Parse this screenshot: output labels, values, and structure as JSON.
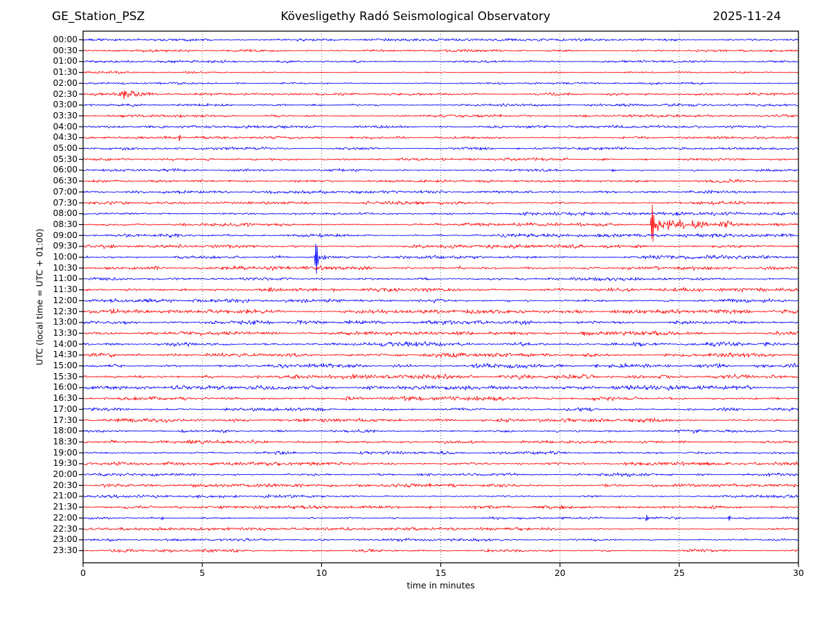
{
  "header": {
    "station": "GE_Station_PSZ",
    "observatory": "Kövesligethy Radó Seismological Observatory",
    "date": "2025-11-24"
  },
  "chart_data": {
    "type": "line",
    "subtype": "helicorder-seismogram",
    "title": "Kövesligethy Radó Seismological Observatory",
    "station": "GE_Station_PSZ",
    "date": "2025-11-24",
    "xlabel": "time in minutes",
    "ylabel": "UTC (local time = UTC + 01:00)",
    "x_range": [
      0,
      30
    ],
    "x_ticks": [
      0,
      5,
      10,
      15,
      20,
      25,
      30
    ],
    "grid_minutes": [
      5,
      10,
      15,
      20,
      25
    ],
    "minutes_per_row": 30,
    "grid_on": true,
    "colors": {
      "even_row_trace": "#0000ff",
      "odd_row_trace": "#ff0000",
      "axis": "#000000",
      "grid": "#555555",
      "background": "#ffffff",
      "text": "#000000"
    },
    "row_times": [
      "00:00",
      "00:30",
      "01:00",
      "01:30",
      "02:00",
      "02:30",
      "03:00",
      "03:30",
      "04:00",
      "04:30",
      "05:00",
      "05:30",
      "06:00",
      "06:30",
      "07:00",
      "07:30",
      "08:00",
      "08:30",
      "09:00",
      "09:30",
      "10:00",
      "10:30",
      "11:00",
      "11:30",
      "12:00",
      "12:30",
      "13:00",
      "13:30",
      "14:00",
      "14:30",
      "15:00",
      "15:30",
      "16:00",
      "16:30",
      "17:00",
      "17:30",
      "18:00",
      "18:30",
      "19:00",
      "19:30",
      "20:00",
      "20:30",
      "21:00",
      "21:30",
      "22:00",
      "22:30",
      "23:00",
      "23:30"
    ],
    "row_noise_amp": [
      1.6,
      1.6,
      1.6,
      1.6,
      1.6,
      1.7,
      1.7,
      1.7,
      1.7,
      1.7,
      1.7,
      1.8,
      1.9,
      1.9,
      2.0,
      2.1,
      2.2,
      2.2,
      2.2,
      2.3,
      2.3,
      2.4,
      2.4,
      2.4,
      2.4,
      2.5,
      2.5,
      2.5,
      2.7,
      2.7,
      2.8,
      2.8,
      2.7,
      2.6,
      2.5,
      2.4,
      2.3,
      2.3,
      2.2,
      2.2,
      2.1,
      2.1,
      2.0,
      2.0,
      1.9,
      1.9,
      1.8,
      1.8
    ],
    "events": [
      {
        "row": "00:30",
        "components": [
          {
            "kind": "bump",
            "min": 27.7,
            "amp": 2.2,
            "width": 0.25
          }
        ]
      },
      {
        "row": "02:30",
        "components": [
          {
            "kind": "burst",
            "start": 1.45,
            "peak": 1.65,
            "amp": 8,
            "tau": 0.55
          },
          {
            "kind": "bump",
            "min": 2.3,
            "amp": 3.5,
            "width": 0.35
          },
          {
            "kind": "tail",
            "from": 1.7,
            "to": 8,
            "amp": 1.1
          }
        ]
      },
      {
        "row": "04:30",
        "components": [
          {
            "kind": "spike",
            "min": 4.05,
            "amp": 5,
            "width": 0.07
          }
        ]
      },
      {
        "row": "08:30",
        "components": [
          {
            "kind": "spike",
            "min": 23.88,
            "amp": 31,
            "width": 0.1
          },
          {
            "kind": "burst",
            "start": 23.85,
            "peak": 24.1,
            "amp": 8.5,
            "tau": 1.4
          },
          {
            "kind": "bump",
            "min": 25.6,
            "amp": 4.5,
            "width": 0.55
          },
          {
            "kind": "bump",
            "min": 27.0,
            "amp": 3.5,
            "width": 0.5
          },
          {
            "kind": "tail",
            "from": 24.0,
            "to": 30,
            "amp": 1.8
          }
        ]
      },
      {
        "row": "10:00",
        "components": [
          {
            "kind": "spike",
            "min": 9.78,
            "amp": 25,
            "width": 0.09
          },
          {
            "kind": "burst",
            "start": 9.7,
            "peak": 9.95,
            "amp": 5.5,
            "tau": 0.5
          },
          {
            "kind": "tail",
            "from": 10.0,
            "to": 12.4,
            "amp": 1.2
          }
        ]
      },
      {
        "row": "10:30",
        "components": [
          {
            "kind": "bump",
            "min": 15.85,
            "amp": 3.2,
            "width": 0.16
          }
        ]
      },
      {
        "row": "12:30",
        "components": [
          {
            "kind": "spike",
            "min": 1.25,
            "amp": 4,
            "width": 0.09
          }
        ]
      },
      {
        "row": "13:00",
        "components": [
          {
            "kind": "bump",
            "min": 25.2,
            "amp": 2.3,
            "width": 0.55
          },
          {
            "kind": "bump",
            "min": 26.1,
            "amp": 1.8,
            "width": 0.35
          }
        ]
      },
      {
        "row": "21:30",
        "components": [
          {
            "kind": "spike",
            "min": 14.55,
            "amp": 2.6,
            "width": 0.06
          }
        ]
      },
      {
        "row": "22:00",
        "components": [
          {
            "kind": "spike",
            "min": 3.35,
            "amp": 2.4,
            "width": 0.06
          },
          {
            "kind": "spike",
            "min": 23.65,
            "amp": 4.8,
            "width": 0.07
          },
          {
            "kind": "spike",
            "min": 27.1,
            "amp": 4.6,
            "width": 0.07
          }
        ]
      }
    ]
  }
}
